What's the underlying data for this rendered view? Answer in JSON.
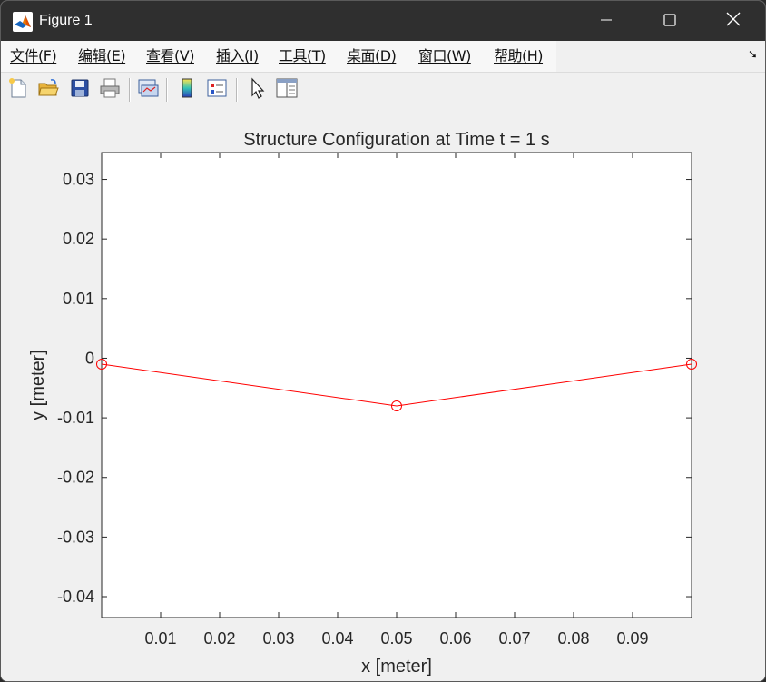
{
  "window": {
    "title": "Figure 1",
    "app_icon": "matlab-logo-icon",
    "controls": [
      "minimize-icon",
      "maximize-icon",
      "close-icon"
    ]
  },
  "menubar": {
    "items": [
      {
        "label": "文件(F)"
      },
      {
        "label": "编辑(E)"
      },
      {
        "label": "查看(V)"
      },
      {
        "label": "插入(I)"
      },
      {
        "label": "工具(T)"
      },
      {
        "label": "桌面(D)"
      },
      {
        "label": "窗口(W)"
      },
      {
        "label": "帮助(H)"
      }
    ],
    "dock_icon": "dock-arrow-icon",
    "dock_glyph": "➘"
  },
  "toolbar": {
    "buttons": [
      "new-figure-icon",
      "open-file-icon",
      "save-icon",
      "print-icon",
      "link-plot-icon",
      "insert-colorbar-icon",
      "insert-legend-icon",
      "edit-plot-arrow-icon",
      "property-inspector-icon"
    ]
  },
  "chart_data": {
    "type": "line",
    "title": "Structure Configuration at Time t = 1 s",
    "xlabel": "x [meter]",
    "ylabel": "y [meter]",
    "xlim": [
      0,
      0.1
    ],
    "ylim": [
      -0.0435,
      0.0345
    ],
    "xticks": [
      0.01,
      0.02,
      0.03,
      0.04,
      0.05,
      0.06,
      0.07,
      0.08,
      0.09
    ],
    "xtick_labels": [
      "0.01",
      "0.02",
      "0.03",
      "0.04",
      "0.05",
      "0.06",
      "0.07",
      "0.08",
      "0.09"
    ],
    "yticks": [
      0.03,
      0.02,
      0.01,
      0,
      -0.01,
      -0.02,
      -0.03,
      -0.04
    ],
    "ytick_labels": [
      "0.03",
      "0.02",
      "0.01",
      "0",
      "-0.01",
      "-0.02",
      "-0.03",
      "-0.04"
    ],
    "grid": false,
    "series": [
      {
        "x": [
          0,
          0.05,
          0.1
        ],
        "y": [
          -0.001,
          -0.008,
          -0.001
        ],
        "color": "#ff0000",
        "marker": "circle"
      }
    ]
  }
}
